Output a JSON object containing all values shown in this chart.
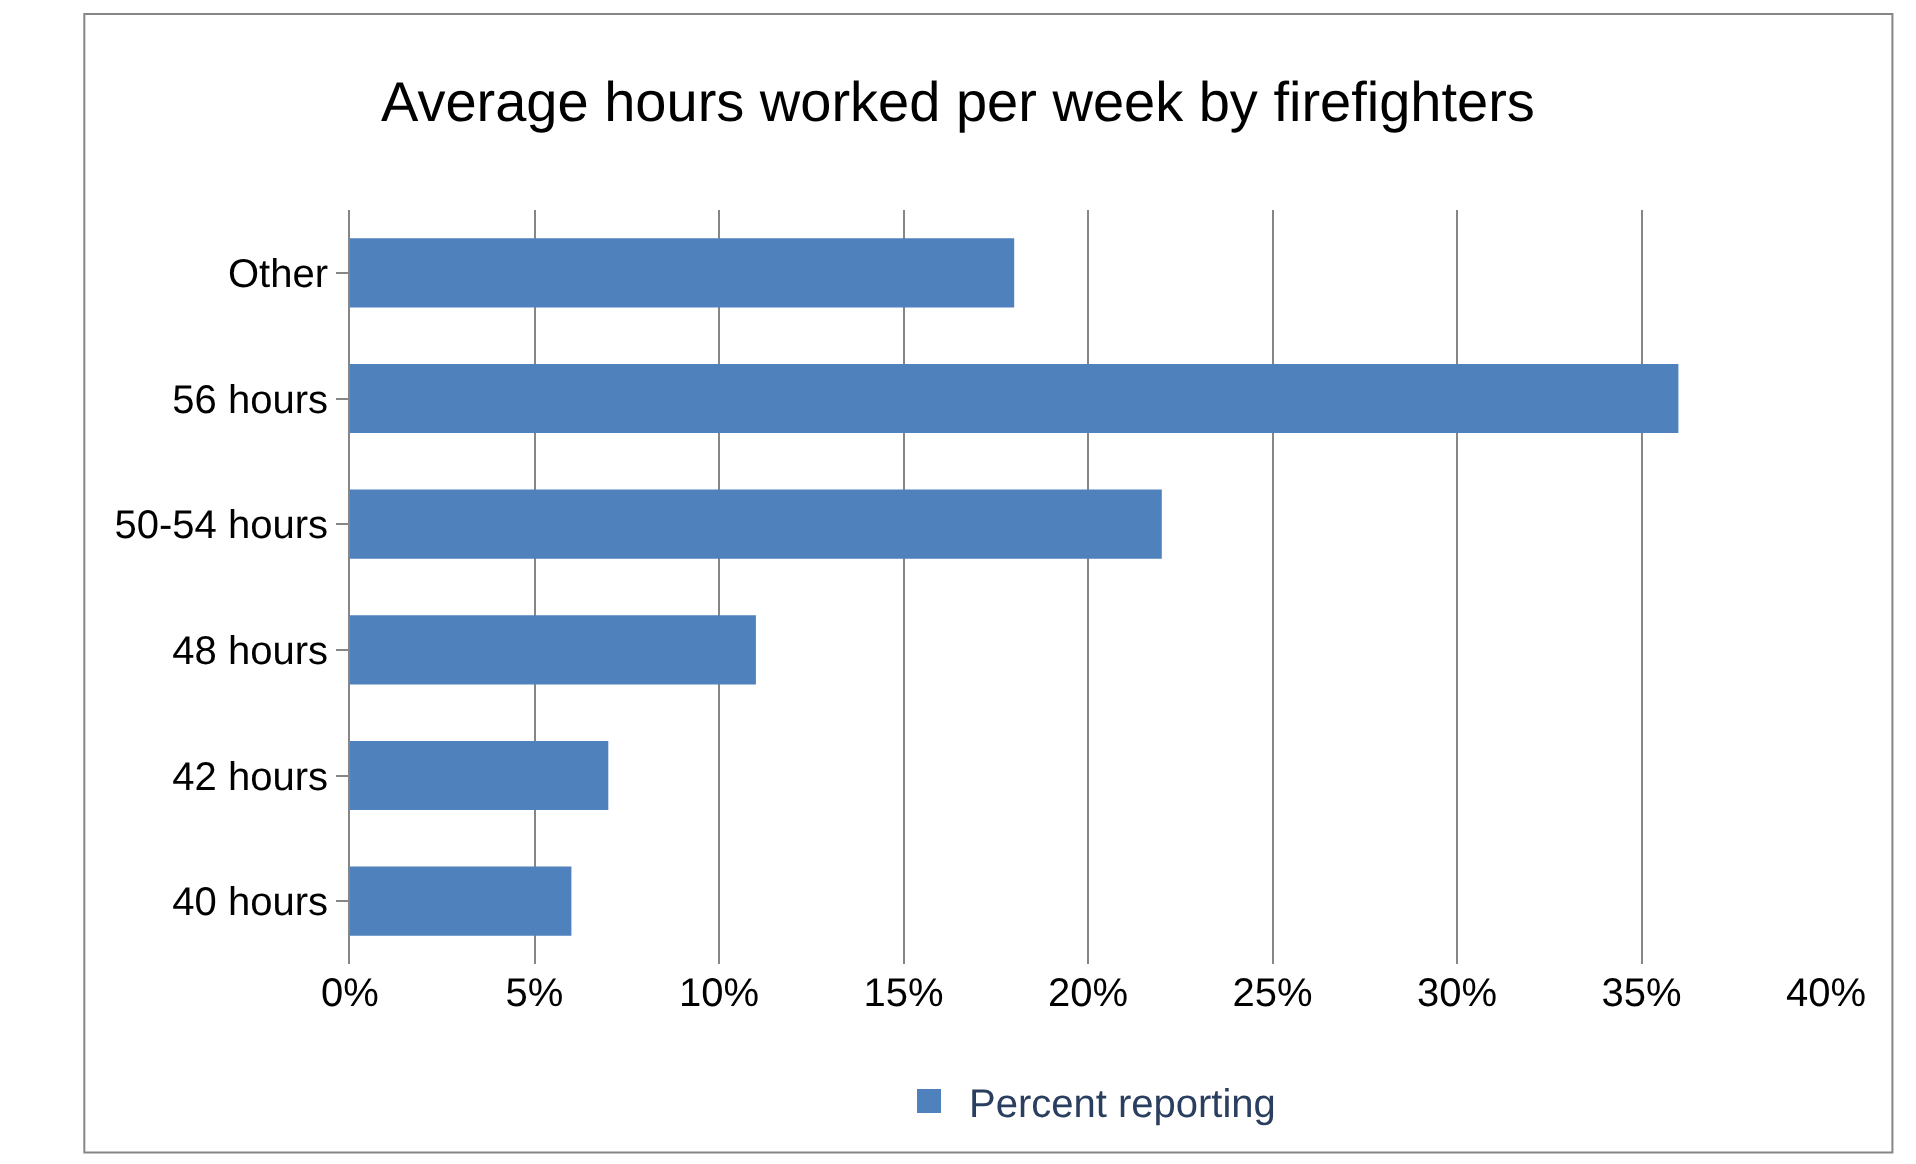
{
  "chart_data": {
    "type": "bar",
    "orientation": "horizontal",
    "title": "Average hours worked per week by firefighters",
    "categories": [
      "Other",
      "56 hours",
      "50-54 hours",
      "48 hours",
      "42 hours",
      "40 hours"
    ],
    "series": [
      {
        "name": "Percent reporting",
        "color": "#4f81bd",
        "values": [
          18,
          36,
          22,
          11,
          7,
          6
        ]
      }
    ],
    "xlim": [
      0,
      40
    ],
    "xticks": [
      {
        "value": 0,
        "label": "0%"
      },
      {
        "value": 5,
        "label": "5%"
      },
      {
        "value": 10,
        "label": "10%"
      },
      {
        "value": 15,
        "label": "15%"
      },
      {
        "value": 20,
        "label": "20%"
      },
      {
        "value": 25,
        "label": "25%"
      },
      {
        "value": 30,
        "label": "30%"
      },
      {
        "value": 35,
        "label": "35%"
      },
      {
        "value": 40,
        "label": "40%"
      }
    ],
    "grid": "x",
    "legend": "bottom"
  }
}
